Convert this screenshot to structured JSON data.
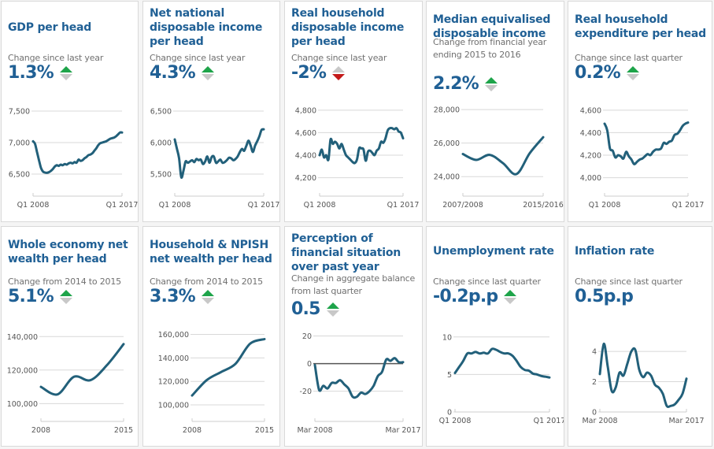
{
  "colors": {
    "accent": "#206095",
    "line": "#22607a",
    "up": "#1ea44a",
    "down": "#c31a1a",
    "neutral": "#c8c8c8",
    "grid": "#d8d8d8"
  },
  "cards": [
    {
      "title": "GDP per head",
      "subtitle": "Change since last year",
      "value": "1.3%",
      "arrow": "up-arrow-icon"
    },
    {
      "title": "Net national disposable income per head",
      "subtitle": "Change since last year",
      "value": "4.3%",
      "arrow": "up-arrow-icon"
    },
    {
      "title": "Real household disposable income per head",
      "subtitle": "Change since last year",
      "value": "-2%",
      "arrow": "down-arrow-icon"
    },
    {
      "title": "Median equivalised disposable income",
      "subtitle": "Change from financial year ending 2015 to 2016",
      "value": "2.2%",
      "arrow": "up-arrow-icon"
    },
    {
      "title": "Real household expenditure per head",
      "subtitle": "Change since last quarter",
      "value": "0.2%",
      "arrow": "up-arrow-icon"
    },
    {
      "title": "Whole economy net wealth per head",
      "subtitle": "Change from 2014 to 2015",
      "value": "5.1%",
      "arrow": "up-arrow-icon"
    },
    {
      "title": "Household & NPISH net wealth per head",
      "subtitle": "Change from 2014 to 2015",
      "value": "3.3%",
      "arrow": "up-arrow-icon"
    },
    {
      "title": "Perception of financial situation over past year",
      "subtitle": "Change in aggregate balance from last quarter",
      "value": "0.5",
      "arrow": "up-arrow-icon"
    },
    {
      "title": "Unemployment rate",
      "subtitle": "Change since last quarter",
      "value": "-0.2p.p",
      "arrow": "up-arrow-icon"
    },
    {
      "title": "Inflation rate",
      "subtitle": "Change since last quarter",
      "value": "0.5p.p",
      "arrow": "none"
    }
  ],
  "chart_data": [
    {
      "type": "line",
      "title": "GDP per head",
      "xlabels": [
        "Q1 2008",
        "Q1 2017"
      ],
      "yticks": [
        6500,
        7000,
        7500
      ],
      "ylim": [
        6300,
        7550
      ],
      "grid": true,
      "values": [
        7020,
        6980,
        6850,
        6720,
        6600,
        6540,
        6525,
        6520,
        6530,
        6550,
        6580,
        6620,
        6640,
        6630,
        6650,
        6640,
        6660,
        6650,
        6670,
        6680,
        6670,
        6690,
        6680,
        6730,
        6710,
        6720,
        6750,
        6770,
        6800,
        6810,
        6830,
        6870,
        6910,
        6960,
        6990,
        7000,
        7010,
        7020,
        7040,
        7060,
        7070,
        7080,
        7100,
        7130,
        7160,
        7160
      ]
    },
    {
      "type": "line",
      "title": "Net national disposable income per head",
      "xlabels": [
        "Q1 2008",
        "Q1 2017"
      ],
      "yticks": [
        5500,
        6000,
        6500
      ],
      "ylim": [
        5300,
        6550
      ],
      "grid": true,
      "values": [
        6050,
        5900,
        5750,
        5450,
        5550,
        5700,
        5680,
        5700,
        5720,
        5690,
        5740,
        5720,
        5730,
        5660,
        5700,
        5780,
        5680,
        5770,
        5780,
        5680,
        5700,
        5730,
        5680,
        5690,
        5720,
        5760,
        5750,
        5720,
        5740,
        5780,
        5850,
        5900,
        5870,
        5950,
        6030,
        5950,
        5850,
        5950,
        6020,
        6100,
        6200,
        6210
      ]
    },
    {
      "type": "line",
      "title": "Real household disposable income per head",
      "xlabels": [
        "Q1 2008",
        "Q1 2017"
      ],
      "yticks": [
        4200,
        4400,
        4600,
        4800
      ],
      "ylim": [
        4120,
        4820
      ],
      "grid": true,
      "values": [
        4400,
        4450,
        4380,
        4400,
        4360,
        4540,
        4500,
        4520,
        4500,
        4460,
        4500,
        4450,
        4400,
        4380,
        4360,
        4340,
        4330,
        4360,
        4460,
        4460,
        4450,
        4350,
        4430,
        4440,
        4420,
        4400,
        4440,
        4460,
        4520,
        4510,
        4550,
        4620,
        4640,
        4640,
        4630,
        4640,
        4610,
        4600,
        4550
      ]
    },
    {
      "type": "line",
      "title": "Median equivalised disposable income",
      "xlabels": [
        "2007/2008",
        "2015/2016"
      ],
      "yticks": [
        24000,
        26000,
        28000
      ],
      "ylim": [
        23400,
        28100
      ],
      "grid": true,
      "values": [
        25350,
        25000,
        25300,
        24800,
        24150,
        25400,
        26350
      ]
    },
    {
      "type": "line",
      "title": "Real household expenditure per head",
      "xlabels": [
        "Q1 2008",
        "Q1 2017"
      ],
      "yticks": [
        4000,
        4200,
        4400,
        4600
      ],
      "ylim": [
        3920,
        4620
      ],
      "grid": true,
      "values": [
        4480,
        4420,
        4260,
        4240,
        4180,
        4200,
        4190,
        4170,
        4230,
        4190,
        4160,
        4120,
        4140,
        4160,
        4170,
        4190,
        4210,
        4200,
        4230,
        4250,
        4250,
        4260,
        4310,
        4300,
        4320,
        4330,
        4380,
        4390,
        4420,
        4460,
        4480,
        4490
      ]
    },
    {
      "type": "line",
      "title": "Whole economy net wealth per head",
      "xlabels": [
        "2008",
        "2015"
      ],
      "yticks": [
        100000,
        120000,
        140000
      ],
      "ylim": [
        95000,
        142000
      ],
      "grid": true,
      "values": [
        110000,
        105500,
        116000,
        114000,
        123000,
        135500
      ]
    },
    {
      "type": "line",
      "title": "Household & NPISH net wealth per head",
      "xlabels": [
        "2008",
        "2015"
      ],
      "yticks": [
        100000,
        120000,
        140000,
        160000
      ],
      "ylim": [
        94000,
        161000
      ],
      "grid": true,
      "values": [
        108000,
        121000,
        128000,
        135000,
        152000,
        156000
      ]
    },
    {
      "type": "line",
      "title": "Perception of financial situation over past year",
      "xlabels": [
        "Mar 2008",
        "Mar 2017"
      ],
      "yticks": [
        -20,
        0,
        20
      ],
      "ylim": [
        -35,
        22
      ],
      "grid": true,
      "zeroline": true,
      "values": [
        -1,
        -19,
        -16,
        -18,
        -14,
        -14,
        -12,
        -15,
        -18,
        -24,
        -24,
        -21,
        -22,
        -20,
        -16,
        -9,
        -6,
        3,
        2,
        4,
        1,
        1
      ]
    },
    {
      "type": "line",
      "title": "Unemployment rate",
      "xlabels": [
        "Q1 2008",
        "Q1 2017"
      ],
      "yticks": [
        0,
        5,
        10
      ],
      "ylim": [
        0,
        10.5
      ],
      "grid": true,
      "values": [
        5.2,
        6.0,
        6.8,
        7.8,
        7.8,
        8.0,
        7.8,
        7.9,
        7.8,
        8.4,
        8.3,
        8.0,
        7.8,
        7.8,
        7.5,
        6.8,
        6.0,
        5.6,
        5.5,
        5.1,
        5.0,
        4.8,
        4.7,
        4.6
      ]
    },
    {
      "type": "line",
      "title": "Inflation rate",
      "xlabels": [
        "Mar 2008",
        "Mar 2017"
      ],
      "yticks": [
        0,
        2,
        4
      ],
      "ylim": [
        0,
        5.2
      ],
      "grid": true,
      "values": [
        2.5,
        4.5,
        3.0,
        1.4,
        1.6,
        2.6,
        2.4,
        3.2,
        4.0,
        4.1,
        2.8,
        2.3,
        2.6,
        2.4,
        1.8,
        1.6,
        1.2,
        0.4,
        0.4,
        0.5,
        0.8,
        1.2,
        2.2
      ]
    }
  ]
}
